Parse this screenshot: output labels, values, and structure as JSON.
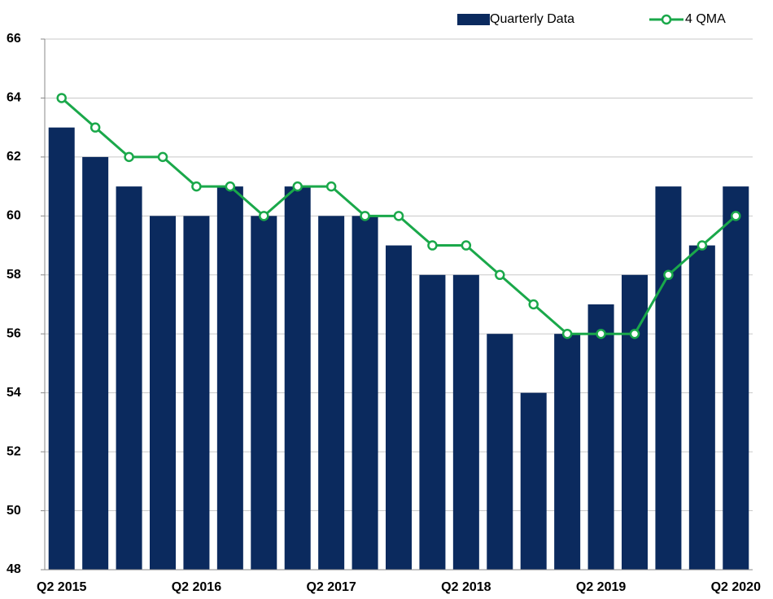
{
  "chart_data": {
    "type": "bar",
    "categories": [
      "Q2 2015",
      null,
      null,
      null,
      "Q2 2016",
      null,
      null,
      null,
      "Q2 2017",
      null,
      null,
      null,
      "Q2 2018",
      null,
      null,
      null,
      "Q2 2019",
      null,
      null,
      null,
      "Q2 2020"
    ],
    "series": [
      {
        "name": "Quarterly Data",
        "type": "bar",
        "color": "#0b2a5e",
        "values": [
          63,
          62,
          61,
          60,
          60,
          61,
          60,
          61,
          60,
          60,
          59,
          58,
          58,
          56,
          54,
          56,
          57,
          58,
          61,
          59,
          61
        ]
      },
      {
        "name": "4 QMA",
        "type": "line",
        "color": "#1aa84a",
        "values": [
          64,
          63,
          62,
          62,
          61,
          61,
          60,
          61,
          61,
          60,
          60,
          59,
          59,
          58,
          57,
          56,
          56,
          56,
          58,
          59,
          60
        ]
      }
    ],
    "ylim": [
      48,
      66
    ],
    "yticks": [
      48,
      50,
      52,
      54,
      56,
      58,
      60,
      62,
      64,
      66
    ],
    "grid": true,
    "legend": "top-right"
  }
}
